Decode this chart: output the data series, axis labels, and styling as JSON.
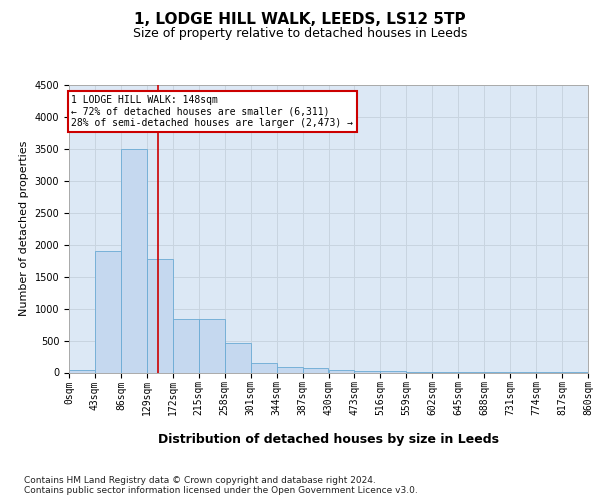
{
  "title1": "1, LODGE HILL WALK, LEEDS, LS12 5TP",
  "title2": "Size of property relative to detached houses in Leeds",
  "xlabel": "Distribution of detached houses by size in Leeds",
  "ylabel": "Number of detached properties",
  "bar_edges": [
    0,
    43,
    86,
    129,
    172,
    215,
    258,
    301,
    344,
    387,
    430,
    473,
    516,
    559,
    602,
    645,
    688,
    731,
    774,
    817,
    860
  ],
  "bar_heights": [
    35,
    1900,
    3500,
    1780,
    840,
    840,
    460,
    155,
    90,
    70,
    40,
    25,
    20,
    10,
    5,
    3,
    2,
    2,
    1,
    1
  ],
  "bar_color": "#c5d8ef",
  "bar_edge_color": "#6aaad4",
  "grid_color": "#c8d4e0",
  "background_color": "#dce8f5",
  "vline_x": 148,
  "vline_color": "#cc0000",
  "annotation_line1": "1 LODGE HILL WALK: 148sqm",
  "annotation_line2": "← 72% of detached houses are smaller (6,311)",
  "annotation_line3": "28% of semi-detached houses are larger (2,473) →",
  "annotation_box_color": "#cc0000",
  "ylim": [
    0,
    4500
  ],
  "yticks": [
    0,
    500,
    1000,
    1500,
    2000,
    2500,
    3000,
    3500,
    4000,
    4500
  ],
  "footer": "Contains HM Land Registry data © Crown copyright and database right 2024.\nContains public sector information licensed under the Open Government Licence v3.0.",
  "title1_fontsize": 11,
  "title2_fontsize": 9,
  "xlabel_fontsize": 9,
  "ylabel_fontsize": 8,
  "tick_fontsize": 7,
  "footer_fontsize": 6.5
}
